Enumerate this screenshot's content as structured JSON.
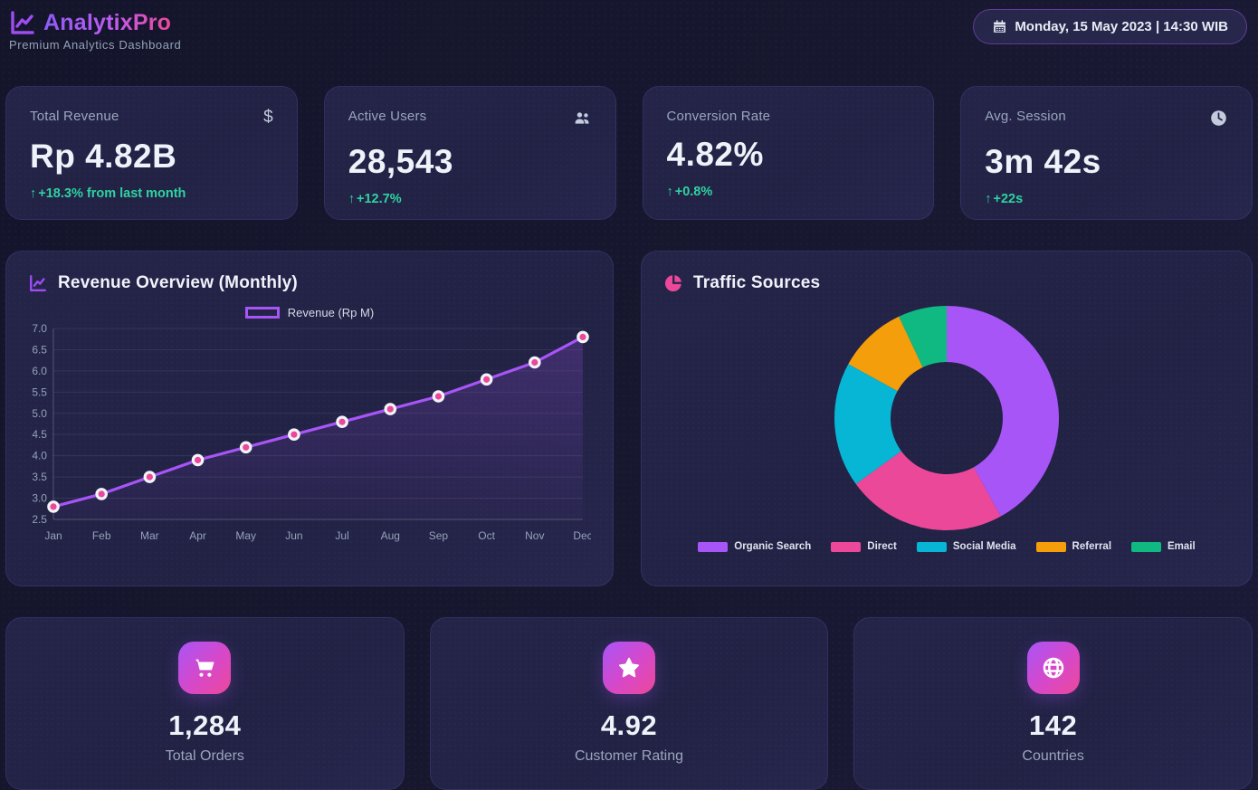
{
  "header": {
    "app_name": "AnalytixPro",
    "subtitle": "Premium Analytics Dashboard",
    "date_badge": "Monday, 15 May 2023 | 14:30 WIB"
  },
  "stats": {
    "up_arrow": "↑",
    "cards": [
      {
        "label": "Total Revenue",
        "value": "Rp 4.82B",
        "delta": "+18.3% from last month",
        "icon": "dollar-icon"
      },
      {
        "label": "Active Users",
        "value": "28,543",
        "delta": "+12.7%",
        "icon": "users-icon"
      },
      {
        "label": "Conversion Rate",
        "value": "4.82%",
        "delta": "+0.8%",
        "icon": "none"
      },
      {
        "label": "Avg. Session",
        "value": "3m 42s",
        "delta": "+22s",
        "icon": "clock-icon"
      }
    ]
  },
  "chart_data": [
    {
      "type": "line",
      "title": "Revenue Overview (Monthly)",
      "categories": [
        "Jan",
        "Feb",
        "Mar",
        "Apr",
        "May",
        "Jun",
        "Jul",
        "Aug",
        "Sep",
        "Oct",
        "Nov",
        "Dec"
      ],
      "series": [
        {
          "name": "Revenue (Rp M)",
          "values": [
            2.8,
            3.1,
            3.5,
            3.9,
            4.2,
            4.5,
            4.8,
            5.1,
            5.4,
            5.8,
            6.2,
            6.8
          ]
        }
      ],
      "xlabel": "",
      "ylabel": "",
      "ylim": [
        2.5,
        7.0
      ],
      "ytick_step": 0.5,
      "grid": true,
      "legend_position": "top",
      "line_color": "#a855f7",
      "point_color": "#ec4899",
      "point_border_color": "#f1f5f9"
    },
    {
      "type": "pie",
      "title": "Traffic Sources",
      "labels": [
        "Organic Search",
        "Direct",
        "Social Media",
        "Referral",
        "Email"
      ],
      "values": [
        42,
        23,
        18,
        10,
        7
      ],
      "colors": [
        "#a855f7",
        "#ec4899",
        "#06b6d4",
        "#f59e0b",
        "#10b981"
      ],
      "donut_inner_ratio": 0.5,
      "legend_position": "bottom"
    }
  ],
  "bottom_cards": [
    {
      "value": "1,284",
      "label": "Total Orders",
      "icon": "cart-icon"
    },
    {
      "value": "4.92",
      "label": "Customer Rating",
      "icon": "star-icon"
    },
    {
      "value": "142",
      "label": "Countries",
      "icon": "globe-icon"
    }
  ],
  "colors": {
    "accent_purple": "#a855f7",
    "accent_pink": "#ec4899",
    "accent_cyan": "#06b6d4",
    "accent_orange": "#f59e0b",
    "accent_green": "#10b981",
    "positive_delta": "#2fd3a0",
    "card_bg": "#232347",
    "page_bg": "#15152d"
  }
}
